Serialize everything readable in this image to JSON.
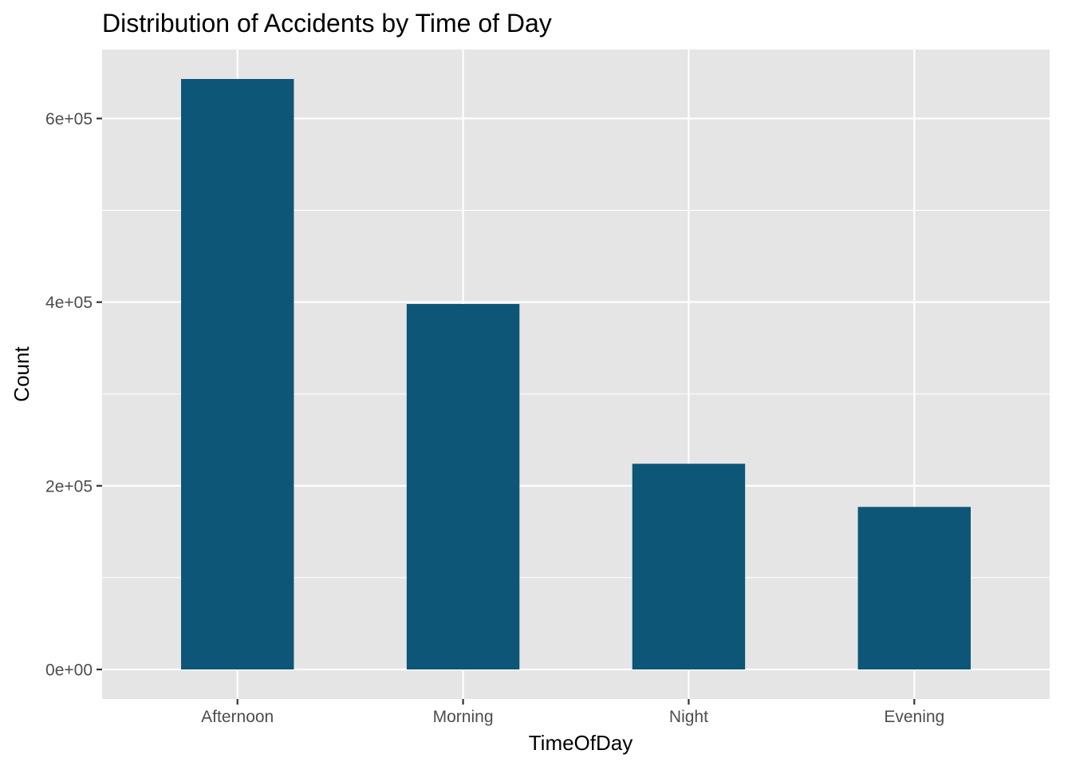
{
  "chart_data": {
    "type": "bar",
    "title": "Distribution of Accidents by Time of Day",
    "xlabel": "TimeOfDay",
    "ylabel": "Count",
    "categories": [
      "Afternoon",
      "Morning",
      "Night",
      "Evening"
    ],
    "values": [
      643000,
      398000,
      224000,
      177000
    ],
    "ylim": [
      -32150,
      675150
    ],
    "yticks": [
      0,
      200000,
      400000,
      600000
    ],
    "ytick_labels": [
      "0e+00",
      "2e+05",
      "4e+05",
      "6e+05"
    ],
    "grid": true,
    "legend": "none",
    "colors": {
      "bar": "#0D5677",
      "panel": "#E5E5E5",
      "grid": "#FFFFFF",
      "tick_text": "#4D4D4D",
      "tick_mark": "#333333"
    }
  }
}
